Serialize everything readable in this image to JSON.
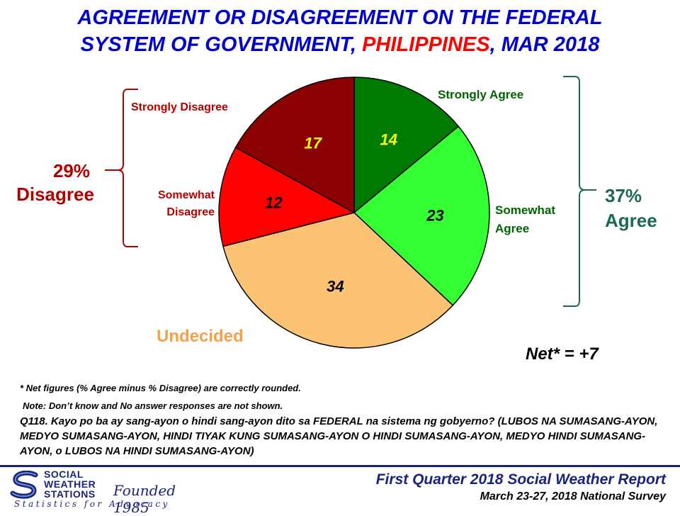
{
  "title": {
    "line1": "AGREEMENT OR DISAGREEMENT ON THE FEDERAL",
    "line2_pre": "SYSTEM OF GOVERNMENT, ",
    "line2_red": "PHILIPPINES",
    "line2_post": ", MAR 2018"
  },
  "chart_data": {
    "type": "pie",
    "title": "AGREEMENT OR DISAGREEMENT ON THE FEDERAL SYSTEM OF GOVERNMENT, PHILIPPINES, MAR 2018",
    "slices": [
      {
        "label": "Strongly Agree",
        "value": 14,
        "color": "#007a00",
        "label_color": "#006400",
        "value_color": "#ffff00"
      },
      {
        "label": "Somewhat Agree",
        "value": 23,
        "color": "#33ff33",
        "label_color": "#006400",
        "value_color": "#000000"
      },
      {
        "label": "Undecided",
        "value": 34,
        "color": "#fcc374",
        "label_color": "#f5a04a",
        "value_color": "#000000"
      },
      {
        "label": "Somewhat Disagree",
        "value": 12,
        "color": "#ff0000",
        "label_color": "#b30000",
        "value_color": "#000000"
      },
      {
        "label": "Strongly Disagree",
        "value": 17,
        "color": "#8b0000",
        "label_color": "#b30000",
        "value_color": "#ffff00"
      }
    ],
    "slice_labels": {
      "strongly_agree": "Strongly Agree",
      "somewhat_agree_1": "Somewhat",
      "somewhat_agree_2": "Agree",
      "undecided": "Undecided",
      "somewhat_disagree_1": "Somewhat",
      "somewhat_disagree_2": "Disagree",
      "strongly_disagree": "Strongly Disagree"
    },
    "groups": {
      "disagree": {
        "pct": "29%",
        "label": "Disagree",
        "color": "#b30000"
      },
      "agree": {
        "pct": "37%",
        "label": "Agree",
        "color": "#1a6b50"
      }
    }
  },
  "net": "Net* = +7",
  "notes": {
    "net_note": "* Net figures (% Agree minus % Disagree) are correctly rounded.",
    "dk_note": "Note: Don’t know and No answer responses are not shown."
  },
  "question": "Q118. Kayo po ba ay sang-ayon o hindi sang-ayon dito sa FEDERAL na sistema ng gobyerno? (LUBOS NA SUMASANG-AYON, MEDYO SUMASANG-AYON, HINDI TIYAK KUNG SUMASANG-AYON O HINDI SUMASANG-AYON, MEDYO HINDI SUMASANG-AYON, o LUBOS NA HINDI SUMASANG-AYON)",
  "footer": {
    "org_line1": "SOCIAL",
    "org_line2": "WEATHER",
    "org_line3": "STATIONS",
    "founded": "Founded 1985",
    "tagline": "Statistics for Advocacy",
    "report_title": "First Quarter 2018 Social Weather Report",
    "report_dates": "March 23-27, 2018 National Survey"
  },
  "colors": {
    "title_blue": "#0000cc",
    "highlight_red": "#ff0000",
    "brand_navy": "#1a237e"
  }
}
